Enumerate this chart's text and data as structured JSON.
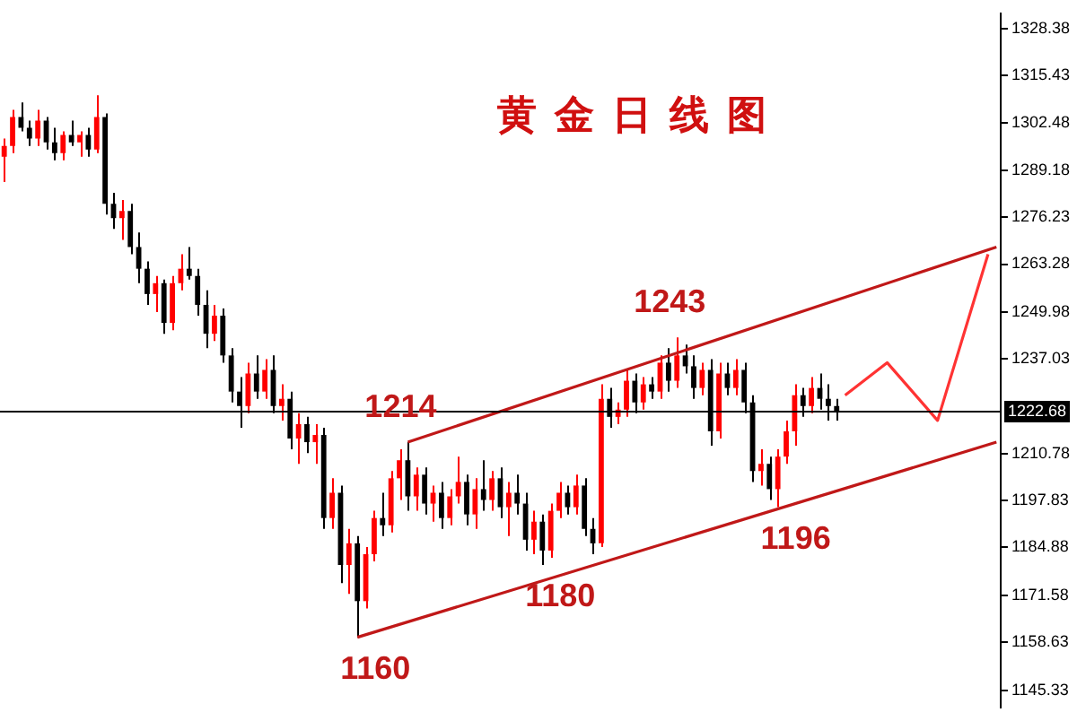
{
  "chart_data": {
    "type": "candlestick",
    "title": "黄金日线图",
    "categories": [
      null,
      null,
      null,
      null,
      null,
      null,
      null,
      null,
      null,
      null,
      null,
      null,
      null,
      null,
      null,
      null,
      null,
      null,
      null,
      null,
      null,
      null,
      null,
      null,
      null,
      null,
      null,
      null,
      null,
      null,
      null,
      null,
      null,
      null,
      null,
      null,
      null,
      null,
      null,
      null,
      null,
      null,
      null,
      null,
      null,
      null,
      null,
      null,
      null,
      null,
      null,
      null,
      null,
      null,
      null,
      null,
      null,
      null,
      null,
      null,
      null,
      null,
      null,
      null,
      null,
      null,
      null,
      null,
      null,
      null,
      null,
      null,
      null,
      null,
      null,
      null,
      null,
      null,
      null,
      null,
      null,
      null,
      null,
      null,
      null,
      null,
      null,
      null,
      null,
      null,
      null,
      null,
      null,
      null,
      null,
      null,
      null,
      null,
      null,
      null,
      null,
      null,
      null,
      null,
      null,
      null,
      null,
      null,
      null,
      null,
      null,
      null,
      null,
      null,
      null,
      null,
      null,
      null,
      null
    ],
    "ohlc": [
      [
        1293,
        1298,
        1286,
        1296
      ],
      [
        1296,
        1306,
        1294,
        1304
      ],
      [
        1304,
        1308,
        1300,
        1301
      ],
      [
        1301,
        1303,
        1296,
        1298
      ],
      [
        1298,
        1306,
        1296,
        1303
      ],
      [
        1303,
        1304,
        1295,
        1297
      ],
      [
        1297,
        1301,
        1292,
        1294
      ],
      [
        1294,
        1300,
        1292,
        1299
      ],
      [
        1299,
        1303,
        1296,
        1297
      ],
      [
        1297,
        1300,
        1293,
        1299
      ],
      [
        1299,
        1301,
        1293,
        1295
      ],
      [
        1295,
        1310,
        1294,
        1304
      ],
      [
        1304,
        1305,
        1277,
        1280
      ],
      [
        1280,
        1283,
        1273,
        1276
      ],
      [
        1276,
        1281,
        1270,
        1278
      ],
      [
        1278,
        1280,
        1266,
        1268
      ],
      [
        1268,
        1272,
        1258,
        1262
      ],
      [
        1262,
        1264,
        1252,
        1255
      ],
      [
        1255,
        1260,
        1250,
        1258
      ],
      [
        1258,
        1259,
        1244,
        1247
      ],
      [
        1247,
        1260,
        1245,
        1258
      ],
      [
        1258,
        1266,
        1256,
        1262
      ],
      [
        1262,
        1268,
        1259,
        1260
      ],
      [
        1260,
        1262,
        1249,
        1252
      ],
      [
        1252,
        1256,
        1240,
        1244
      ],
      [
        1244,
        1252,
        1242,
        1249
      ],
      [
        1249,
        1251,
        1236,
        1238
      ],
      [
        1238,
        1240,
        1225,
        1228
      ],
      [
        1228,
        1232,
        1218,
        1224
      ],
      [
        1224,
        1236,
        1222,
        1233
      ],
      [
        1233,
        1238,
        1226,
        1228
      ],
      [
        1228,
        1237,
        1226,
        1234
      ],
      [
        1234,
        1238,
        1222,
        1224
      ],
      [
        1224,
        1230,
        1220,
        1226
      ],
      [
        1226,
        1228,
        1212,
        1215
      ],
      [
        1215,
        1222,
        1208,
        1219
      ],
      [
        1219,
        1221,
        1211,
        1214
      ],
      [
        1214,
        1219,
        1208,
        1216
      ],
      [
        1216,
        1218,
        1190,
        1193
      ],
      [
        1193,
        1204,
        1190,
        1200
      ],
      [
        1200,
        1202,
        1175,
        1180
      ],
      [
        1180,
        1190,
        1172,
        1186
      ],
      [
        1186,
        1188,
        1160,
        1170
      ],
      [
        1170,
        1185,
        1168,
        1183
      ],
      [
        1183,
        1195,
        1181,
        1193
      ],
      [
        1193,
        1200,
        1188,
        1191
      ],
      [
        1191,
        1206,
        1189,
        1204
      ],
      [
        1204,
        1212,
        1198,
        1209
      ],
      [
        1209,
        1214,
        1195,
        1199
      ],
      [
        1199,
        1207,
        1195,
        1205
      ],
      [
        1205,
        1207,
        1194,
        1197
      ],
      [
        1197,
        1202,
        1192,
        1200
      ],
      [
        1200,
        1203,
        1190,
        1193
      ],
      [
        1193,
        1201,
        1191,
        1199
      ],
      [
        1199,
        1210,
        1197,
        1203
      ],
      [
        1203,
        1205,
        1191,
        1194
      ],
      [
        1194,
        1204,
        1190,
        1201
      ],
      [
        1201,
        1209,
        1195,
        1198
      ],
      [
        1198,
        1206,
        1195,
        1204
      ],
      [
        1204,
        1207,
        1193,
        1196
      ],
      [
        1196,
        1203,
        1188,
        1200
      ],
      [
        1200,
        1205,
        1194,
        1197
      ],
      [
        1197,
        1200,
        1184,
        1187
      ],
      [
        1187,
        1195,
        1183,
        1192
      ],
      [
        1192,
        1194,
        1180,
        1184
      ],
      [
        1184,
        1197,
        1182,
        1195
      ],
      [
        1195,
        1203,
        1193,
        1200
      ],
      [
        1200,
        1202,
        1194,
        1196
      ],
      [
        1196,
        1205,
        1194,
        1202
      ],
      [
        1202,
        1204,
        1188,
        1190
      ],
      [
        1190,
        1193,
        1183,
        1186
      ],
      [
        1186,
        1230,
        1185,
        1226
      ],
      [
        1226,
        1229,
        1218,
        1221
      ],
      [
        1221,
        1225,
        1219,
        1223
      ],
      [
        1223,
        1234,
        1221,
        1231
      ],
      [
        1231,
        1233,
        1222,
        1225
      ],
      [
        1225,
        1232,
        1223,
        1230
      ],
      [
        1230,
        1232,
        1226,
        1228
      ],
      [
        1228,
        1238,
        1226,
        1236
      ],
      [
        1236,
        1240,
        1228,
        1231
      ],
      [
        1231,
        1243,
        1229,
        1238
      ],
      [
        1238,
        1241,
        1233,
        1235
      ],
      [
        1235,
        1238,
        1226,
        1229
      ],
      [
        1229,
        1236,
        1227,
        1234
      ],
      [
        1234,
        1237,
        1213,
        1217
      ],
      [
        1217,
        1236,
        1215,
        1233
      ],
      [
        1233,
        1236,
        1227,
        1229
      ],
      [
        1229,
        1237,
        1227,
        1234
      ],
      [
        1234,
        1236,
        1222,
        1225
      ],
      [
        1225,
        1227,
        1203,
        1206
      ],
      [
        1206,
        1212,
        1202,
        1208
      ],
      [
        1208,
        1210,
        1198,
        1201
      ],
      [
        1201,
        1212,
        1196,
        1210
      ],
      [
        1210,
        1220,
        1208,
        1217
      ],
      [
        1217,
        1230,
        1213,
        1227
      ],
      [
        1227,
        1229,
        1221,
        1224
      ],
      [
        1224,
        1232,
        1222,
        1229
      ],
      [
        1229,
        1233,
        1223,
        1226
      ],
      [
        1226,
        1230,
        1220,
        1224
      ],
      [
        1224,
        1226,
        1220,
        1222.68
      ],
      null,
      null,
      null,
      null,
      null,
      null,
      null,
      null,
      null,
      null,
      null,
      null,
      null,
      null,
      null,
      null,
      null,
      null,
      null
    ],
    "colors": [
      "#ff0000",
      "#ff0000",
      "#000000",
      "#000000",
      "#ff0000",
      "#000000",
      "#000000",
      "#ff0000",
      "#000000",
      "#ff0000",
      "#000000",
      "#ff0000",
      "#000000",
      "#000000",
      "#ff0000",
      "#000000",
      "#000000",
      "#000000",
      "#ff0000",
      "#000000",
      "#ff0000",
      "#ff0000",
      "#000000",
      "#000000",
      "#000000",
      "#ff0000",
      "#000000",
      "#000000",
      "#000000",
      "#ff0000",
      "#000000",
      "#ff0000",
      "#000000",
      "#ff0000",
      "#000000",
      "#ff0000",
      "#000000",
      "#ff0000",
      "#000000",
      "#ff0000",
      "#000000",
      "#ff0000",
      "#000000",
      "#ff0000",
      "#ff0000",
      "#000000",
      "#ff0000",
      "#ff0000",
      "#000000",
      "#ff0000",
      "#000000",
      "#ff0000",
      "#000000",
      "#ff0000",
      "#ff0000",
      "#000000",
      "#ff0000",
      "#000000",
      "#ff0000",
      "#000000",
      "#ff0000",
      "#000000",
      "#000000",
      "#ff0000",
      "#000000",
      "#ff0000",
      "#ff0000",
      "#000000",
      "#ff0000",
      "#000000",
      "#000000",
      "#ff0000",
      "#000000",
      "#ff0000",
      "#ff0000",
      "#000000",
      "#ff0000",
      "#000000",
      "#ff0000",
      "#000000",
      "#ff0000",
      "#000000",
      "#000000",
      "#ff0000",
      "#000000",
      "#ff0000",
      "#000000",
      "#ff0000",
      "#000000",
      "#000000",
      "#ff0000",
      "#000000",
      "#ff0000",
      "#ff0000",
      "#ff0000",
      "#000000",
      "#ff0000",
      "#000000",
      "#000000",
      "#000000",
      null,
      null,
      null,
      null,
      null,
      null,
      null,
      null,
      null,
      null,
      null,
      null,
      null,
      null,
      null,
      null,
      null,
      null,
      null
    ],
    "series": [
      {
        "type": "line",
        "color": "#c01818",
        "values": [
          null,
          null,
          null,
          null,
          null,
          null,
          null,
          null,
          null,
          null,
          null,
          null,
          null,
          null,
          null,
          null,
          null,
          null,
          null,
          null,
          null,
          null,
          null,
          null,
          null,
          null,
          null,
          null,
          null,
          null,
          null,
          null,
          null,
          null,
          null,
          null,
          null,
          null,
          null,
          null,
          null,
          null,
          null,
          null,
          null,
          null,
          null,
          null,
          1214,
          null,
          null,
          null,
          null,
          null,
          null,
          null,
          null,
          null,
          null,
          null,
          null,
          null,
          null,
          null,
          null,
          null,
          null,
          null,
          null,
          null,
          null,
          null,
          null,
          null,
          null,
          null,
          null,
          null,
          null,
          null,
          null,
          null,
          null,
          null,
          null,
          null,
          null,
          null,
          null,
          null,
          null,
          null,
          null,
          null,
          null,
          null,
          null,
          null,
          null,
          null,
          null,
          null,
          null,
          null,
          null,
          null,
          null,
          null,
          null,
          null,
          null,
          null,
          null,
          null,
          null,
          null,
          null,
          null,
          1268
        ]
      },
      {
        "type": "line",
        "color": "#c01818",
        "values": [
          null,
          null,
          null,
          null,
          null,
          null,
          null,
          null,
          null,
          null,
          null,
          null,
          null,
          null,
          null,
          null,
          null,
          null,
          null,
          null,
          null,
          null,
          null,
          null,
          null,
          null,
          null,
          null,
          null,
          null,
          null,
          null,
          null,
          null,
          null,
          null,
          null,
          null,
          null,
          null,
          null,
          null,
          1160,
          null,
          null,
          null,
          null,
          null,
          null,
          null,
          null,
          null,
          null,
          null,
          null,
          null,
          null,
          null,
          null,
          null,
          null,
          null,
          null,
          null,
          null,
          null,
          null,
          null,
          null,
          null,
          null,
          null,
          null,
          null,
          null,
          null,
          null,
          null,
          null,
          null,
          null,
          null,
          null,
          null,
          null,
          null,
          null,
          null,
          null,
          null,
          null,
          null,
          null,
          null,
          null,
          null,
          null,
          null,
          null,
          null,
          null,
          null,
          null,
          null,
          null,
          null,
          null,
          null,
          null,
          null,
          null,
          null,
          null,
          null,
          null,
          null,
          null,
          null,
          1214
        ]
      },
      {
        "type": "line",
        "color": "#ff3333",
        "values": [
          null,
          null,
          null,
          null,
          null,
          null,
          null,
          null,
          null,
          null,
          null,
          null,
          null,
          null,
          null,
          null,
          null,
          null,
          null,
          null,
          null,
          null,
          null,
          null,
          null,
          null,
          null,
          null,
          null,
          null,
          null,
          null,
          null,
          null,
          null,
          null,
          null,
          null,
          null,
          null,
          null,
          null,
          null,
          null,
          null,
          null,
          null,
          null,
          null,
          null,
          null,
          null,
          null,
          null,
          null,
          null,
          null,
          null,
          null,
          null,
          null,
          null,
          null,
          null,
          null,
          null,
          null,
          null,
          null,
          null,
          null,
          null,
          null,
          null,
          null,
          null,
          null,
          null,
          null,
          null,
          null,
          null,
          null,
          null,
          null,
          null,
          null,
          null,
          null,
          null,
          null,
          null,
          null,
          null,
          null,
          null,
          null,
          null,
          null,
          null,
          1227,
          null,
          null,
          null,
          null,
          1236,
          null,
          null,
          null,
          null,
          null,
          1220,
          null,
          null,
          null,
          null,
          null,
          1266,
          null
        ]
      }
    ],
    "annotations": [
      {
        "text": "1214",
        "y": 1214
      },
      {
        "text": "1243",
        "y": 1243
      },
      {
        "text": "1180",
        "y": 1180
      },
      {
        "text": "1196",
        "y": 1196
      },
      {
        "text": "1160",
        "y": 1160
      }
    ],
    "ref_lines": [
      {
        "axis": "y",
        "value": 1222.68,
        "label": "1222.68",
        "color": "#000000"
      }
    ],
    "ylim": [
      1140.5,
      1332.7
    ],
    "yticks": [
      1145.33,
      1158.63,
      1171.58,
      1184.88,
      1197.83,
      1210.78,
      1237.03,
      1249.98,
      1263.28,
      1276.23,
      1289.18,
      1302.48,
      1315.43,
      1328.38
    ],
    "tick_labels": "y",
    "grid": false,
    "legend": false,
    "marker": "none"
  }
}
